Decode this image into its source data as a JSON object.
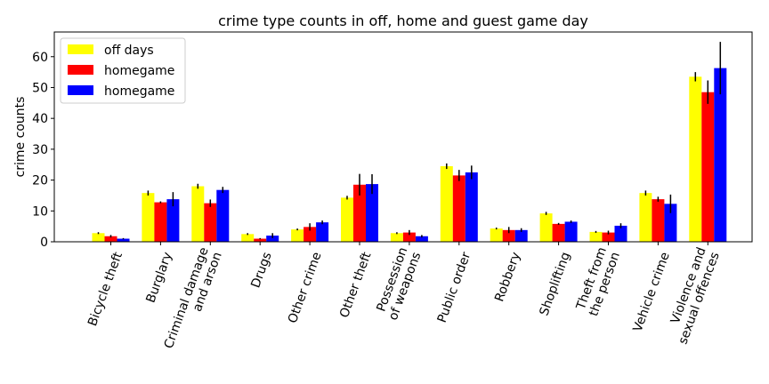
{
  "chart_data": {
    "type": "bar",
    "title": "crime type counts in off, home and guest game day",
    "xlabel": "",
    "ylabel": "crime counts",
    "ylim": [
      0,
      68
    ],
    "yticks": [
      0,
      10,
      20,
      30,
      40,
      50,
      60
    ],
    "grid": false,
    "legend_position": "top-left",
    "categories": [
      [
        "Bicycle theft"
      ],
      [
        "Burglary"
      ],
      [
        "Criminal damage",
        "and arson"
      ],
      [
        "Drugs"
      ],
      [
        "Other crime"
      ],
      [
        "Other theft"
      ],
      [
        "Possession",
        "of weapons"
      ],
      [
        "Public order"
      ],
      [
        "Robbery"
      ],
      [
        "Shoplifting"
      ],
      [
        "Theft from",
        "the person"
      ],
      [
        "Vehicle crime"
      ],
      [
        "Violence and",
        "sexual offences"
      ]
    ],
    "series": [
      {
        "name": "off days",
        "color": "#ffff00",
        "values": [
          2.8,
          15.8,
          18.0,
          2.5,
          4.0,
          14.3,
          2.8,
          24.5,
          4.3,
          9.2,
          3.2,
          15.8,
          53.5
        ],
        "errors": [
          0.3,
          0.8,
          0.8,
          0.3,
          0.3,
          0.6,
          0.3,
          0.9,
          0.3,
          0.5,
          0.3,
          0.8,
          1.5
        ]
      },
      {
        "name": "homegame",
        "color": "#ff0000",
        "values": [
          1.8,
          12.8,
          12.5,
          1.0,
          4.8,
          18.5,
          3.0,
          21.5,
          3.8,
          5.8,
          3.0,
          13.8,
          48.5
        ],
        "errors": [
          0.4,
          0.3,
          1.2,
          0.2,
          1.2,
          3.5,
          0.8,
          1.8,
          1.0,
          0.3,
          0.6,
          0.8,
          3.8
        ]
      },
      {
        "name": "homegame",
        "color": "#0000ff",
        "values": [
          1.0,
          13.8,
          16.8,
          2.0,
          6.3,
          18.7,
          1.8,
          22.5,
          3.8,
          6.5,
          5.2,
          12.3,
          56.3
        ],
        "errors": [
          0.2,
          2.3,
          1.0,
          0.8,
          0.6,
          3.2,
          0.4,
          2.2,
          0.6,
          0.4,
          0.8,
          3.0,
          8.5
        ]
      }
    ]
  }
}
